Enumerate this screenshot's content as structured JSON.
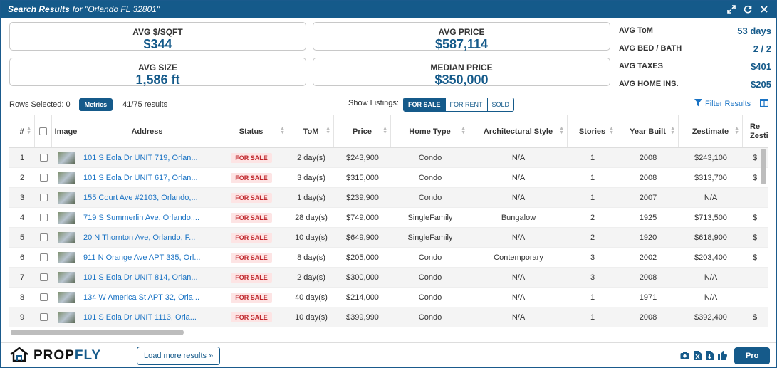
{
  "title": {
    "bold": "Search Results",
    "rest": "for \"Orlando FL 32801\""
  },
  "title_icons": [
    "expand-icon",
    "refresh-icon",
    "close-icon"
  ],
  "stats": {
    "avg_sqft": {
      "label": "AVG $/SQFT",
      "value": "$344"
    },
    "avg_price": {
      "label": "AVG PRICE",
      "value": "$587,114"
    },
    "avg_size": {
      "label": "AVG SIZE",
      "value": "1,586 ft"
    },
    "median_price": {
      "label": "MEDIAN PRICE",
      "value": "$350,000"
    },
    "side": [
      {
        "label": "AVG ToM",
        "value": "53 days"
      },
      {
        "label": "AVG BED / BATH",
        "value": "2 / 2"
      },
      {
        "label": "AVG TAXES",
        "value": "$401"
      },
      {
        "label": "AVG HOME INS.",
        "value": "$205"
      }
    ]
  },
  "toolbar": {
    "rows_selected": "Rows Selected: 0",
    "metrics_label": "Metrics",
    "results_count": "41/75 results",
    "show_listings_label": "Show Listings:",
    "listing_tabs": [
      "FOR SALE",
      "FOR RENT",
      "SOLD"
    ],
    "filter_label": "Filter Results"
  },
  "columns": [
    "#",
    "",
    "Image",
    "Address",
    "Status",
    "ToM",
    "Price",
    "Home Type",
    "Architectural Style",
    "Stories",
    "Year Built",
    "Zestimate",
    "Re Zesti"
  ],
  "rows": [
    {
      "num": "1",
      "address": "101 S Eola Dr UNIT 719, Orlan...",
      "status": "FOR SALE",
      "tom": "2 day(s)",
      "price": "$243,900",
      "type": "Condo",
      "style": "N/A",
      "stories": "1",
      "year": "2008",
      "zestimate": "$243,100",
      "rz": "$"
    },
    {
      "num": "2",
      "address": "101 S Eola Dr UNIT 617, Orlan...",
      "status": "FOR SALE",
      "tom": "3 day(s)",
      "price": "$315,000",
      "type": "Condo",
      "style": "N/A",
      "stories": "1",
      "year": "2008",
      "zestimate": "$313,700",
      "rz": "$"
    },
    {
      "num": "3",
      "address": "155 Court Ave #2103, Orlando,...",
      "status": "FOR SALE",
      "tom": "1 day(s)",
      "price": "$239,900",
      "type": "Condo",
      "style": "N/A",
      "stories": "1",
      "year": "2007",
      "zestimate": "N/A",
      "rz": ""
    },
    {
      "num": "4",
      "address": "719 S Summerlin Ave, Orlando,...",
      "status": "FOR SALE",
      "tom": "28 day(s)",
      "price": "$749,000",
      "type": "SingleFamily",
      "style": "Bungalow",
      "stories": "2",
      "year": "1925",
      "zestimate": "$713,500",
      "rz": "$"
    },
    {
      "num": "5",
      "address": "20 N Thornton Ave, Orlando, F...",
      "status": "FOR SALE",
      "tom": "10 day(s)",
      "price": "$649,900",
      "type": "SingleFamily",
      "style": "N/A",
      "stories": "2",
      "year": "1920",
      "zestimate": "$618,900",
      "rz": "$"
    },
    {
      "num": "6",
      "address": "911 N Orange Ave APT 335, Orl...",
      "status": "FOR SALE",
      "tom": "8 day(s)",
      "price": "$205,000",
      "type": "Condo",
      "style": "Contemporary",
      "stories": "3",
      "year": "2002",
      "zestimate": "$203,400",
      "rz": "$"
    },
    {
      "num": "7",
      "address": "101 S Eola Dr UNIT 814, Orlan...",
      "status": "FOR SALE",
      "tom": "2 day(s)",
      "price": "$300,000",
      "type": "Condo",
      "style": "N/A",
      "stories": "3",
      "year": "2008",
      "zestimate": "N/A",
      "rz": ""
    },
    {
      "num": "8",
      "address": "134 W America St APT 32, Orla...",
      "status": "FOR SALE",
      "tom": "40 day(s)",
      "price": "$214,000",
      "type": "Condo",
      "style": "N/A",
      "stories": "1",
      "year": "1971",
      "zestimate": "N/A",
      "rz": ""
    },
    {
      "num": "9",
      "address": "101 S Eola Dr UNIT 1113, Orla...",
      "status": "FOR SALE",
      "tom": "10 day(s)",
      "price": "$399,990",
      "type": "Condo",
      "style": "N/A",
      "stories": "1",
      "year": "2008",
      "zestimate": "$392,400",
      "rz": "$"
    }
  ],
  "footer": {
    "logo_a": "PROP",
    "logo_b": "FLY",
    "load_more": "Load more results",
    "pro": "Pro"
  },
  "colors": {
    "accent": "#155a8a",
    "link": "#1a73c4",
    "badge_bg": "#fde4e4",
    "badge_text": "#c0282d"
  }
}
